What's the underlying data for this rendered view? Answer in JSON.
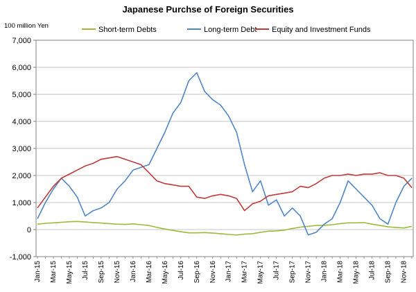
{
  "chart_data": {
    "type": "line",
    "title": "Japanese Purchse of Foreign Securities",
    "ylabel": "100 million Yen",
    "ylim": [
      -1000,
      7000
    ],
    "yticks": [
      "-1,000",
      "0",
      "1,000",
      "2,000",
      "3,000",
      "4,000",
      "5,000",
      "6,000",
      "7,000"
    ],
    "ytick_values": [
      -1000,
      0,
      1000,
      2000,
      3000,
      4000,
      5000,
      6000,
      7000
    ],
    "xlim": [
      "2015-01",
      "2018-12"
    ],
    "x_tick_labels": [
      "Jan-15",
      "Mar-15",
      "May-15",
      "Jul-15",
      "Sep-15",
      "Nov-15",
      "Jan-16",
      "Mar-16",
      "May-16",
      "Jul-16",
      "Sep-16",
      "Nov-16",
      "Jan-17",
      "Mar-17",
      "May-17",
      "Jul-17",
      "Sep-17",
      "Nov-17",
      "Jan-18",
      "Mar-18",
      "May-18",
      "Jul-18",
      "Sep-18",
      "Nov-18"
    ],
    "grid": true,
    "legend_position": "top",
    "series": [
      {
        "name": "Short-term Debts",
        "color": "#9bbb3b",
        "points": [
          [
            "2015-01",
            200
          ],
          [
            "2015-02",
            230
          ],
          [
            "2015-03",
            250
          ],
          [
            "2015-04",
            270
          ],
          [
            "2015-05",
            290
          ],
          [
            "2015-06",
            300
          ],
          [
            "2015-07",
            280
          ],
          [
            "2015-08",
            260
          ],
          [
            "2015-09",
            240
          ],
          [
            "2015-10",
            220
          ],
          [
            "2015-11",
            200
          ],
          [
            "2015-12",
            190
          ],
          [
            "2016-01",
            210
          ],
          [
            "2016-02",
            180
          ],
          [
            "2016-03",
            150
          ],
          [
            "2016-04",
            80
          ],
          [
            "2016-05",
            20
          ],
          [
            "2016-06",
            -30
          ],
          [
            "2016-07",
            -80
          ],
          [
            "2016-08",
            -120
          ],
          [
            "2016-09",
            -120
          ],
          [
            "2016-10",
            -110
          ],
          [
            "2016-11",
            -130
          ],
          [
            "2016-12",
            -150
          ],
          [
            "2017-01",
            -180
          ],
          [
            "2017-02",
            -200
          ],
          [
            "2017-03",
            -170
          ],
          [
            "2017-04",
            -150
          ],
          [
            "2017-05",
            -100
          ],
          [
            "2017-06",
            -60
          ],
          [
            "2017-07",
            -50
          ],
          [
            "2017-08",
            -20
          ],
          [
            "2017-09",
            40
          ],
          [
            "2017-10",
            90
          ],
          [
            "2017-11",
            120
          ],
          [
            "2017-12",
            150
          ],
          [
            "2018-01",
            160
          ],
          [
            "2018-02",
            180
          ],
          [
            "2018-03",
            220
          ],
          [
            "2018-04",
            250
          ],
          [
            "2018-05",
            250
          ],
          [
            "2018-06",
            260
          ],
          [
            "2018-07",
            200
          ],
          [
            "2018-08",
            150
          ],
          [
            "2018-09",
            100
          ],
          [
            "2018-10",
            80
          ],
          [
            "2018-11",
            60
          ],
          [
            "2018-12",
            120
          ]
        ]
      },
      {
        "name": "Long-term Debt",
        "color": "#4f86c6",
        "points": [
          [
            "2015-01",
            400
          ],
          [
            "2015-02",
            1000
          ],
          [
            "2015-03",
            1500
          ],
          [
            "2015-04",
            1900
          ],
          [
            "2015-05",
            1600
          ],
          [
            "2015-06",
            1200
          ],
          [
            "2015-07",
            500
          ],
          [
            "2015-08",
            700
          ],
          [
            "2015-09",
            800
          ],
          [
            "2015-10",
            1000
          ],
          [
            "2015-11",
            1500
          ],
          [
            "2015-12",
            1800
          ],
          [
            "2016-01",
            2200
          ],
          [
            "2016-02",
            2300
          ],
          [
            "2016-03",
            2400
          ],
          [
            "2016-04",
            3000
          ],
          [
            "2016-05",
            3600
          ],
          [
            "2016-06",
            4300
          ],
          [
            "2016-07",
            4700
          ],
          [
            "2016-08",
            5500
          ],
          [
            "2016-09",
            5800
          ],
          [
            "2016-10",
            5100
          ],
          [
            "2016-11",
            4800
          ],
          [
            "2016-12",
            4600
          ],
          [
            "2017-01",
            4200
          ],
          [
            "2017-02",
            3600
          ],
          [
            "2017-03",
            2400
          ],
          [
            "2017-04",
            1400
          ],
          [
            "2017-05",
            1800
          ],
          [
            "2017-06",
            900
          ],
          [
            "2017-07",
            1100
          ],
          [
            "2017-08",
            500
          ],
          [
            "2017-09",
            800
          ],
          [
            "2017-10",
            500
          ],
          [
            "2017-11",
            -200
          ],
          [
            "2017-12",
            -100
          ],
          [
            "2018-01",
            200
          ],
          [
            "2018-02",
            400
          ],
          [
            "2018-03",
            1000
          ],
          [
            "2018-04",
            1800
          ],
          [
            "2018-05",
            1500
          ],
          [
            "2018-06",
            1200
          ],
          [
            "2018-07",
            900
          ],
          [
            "2018-08",
            400
          ],
          [
            "2018-09",
            200
          ],
          [
            "2018-10",
            1000
          ],
          [
            "2018-11",
            1600
          ],
          [
            "2018-12",
            1900
          ]
        ]
      },
      {
        "name": "Equity and Investment Funds",
        "color": "#c0393b",
        "points": [
          [
            "2015-01",
            800
          ],
          [
            "2015-02",
            1200
          ],
          [
            "2015-03",
            1600
          ],
          [
            "2015-04",
            1900
          ],
          [
            "2015-05",
            2050
          ],
          [
            "2015-06",
            2200
          ],
          [
            "2015-07",
            2350
          ],
          [
            "2015-08",
            2450
          ],
          [
            "2015-09",
            2600
          ],
          [
            "2015-10",
            2650
          ],
          [
            "2015-11",
            2700
          ],
          [
            "2015-12",
            2600
          ],
          [
            "2016-01",
            2500
          ],
          [
            "2016-02",
            2400
          ],
          [
            "2016-03",
            2100
          ],
          [
            "2016-04",
            1800
          ],
          [
            "2016-05",
            1700
          ],
          [
            "2016-06",
            1650
          ],
          [
            "2016-07",
            1600
          ],
          [
            "2016-08",
            1600
          ],
          [
            "2016-09",
            1200
          ],
          [
            "2016-10",
            1150
          ],
          [
            "2016-11",
            1250
          ],
          [
            "2016-12",
            1300
          ],
          [
            "2017-01",
            1250
          ],
          [
            "2017-02",
            1150
          ],
          [
            "2017-03",
            700
          ],
          [
            "2017-04",
            950
          ],
          [
            "2017-05",
            1050
          ],
          [
            "2017-06",
            1250
          ],
          [
            "2017-07",
            1300
          ],
          [
            "2017-08",
            1350
          ],
          [
            "2017-09",
            1400
          ],
          [
            "2017-10",
            1600
          ],
          [
            "2017-11",
            1550
          ],
          [
            "2017-12",
            1700
          ],
          [
            "2018-01",
            1900
          ],
          [
            "2018-02",
            2000
          ],
          [
            "2018-03",
            2000
          ],
          [
            "2018-04",
            2050
          ],
          [
            "2018-05",
            2000
          ],
          [
            "2018-06",
            2050
          ],
          [
            "2018-07",
            2050
          ],
          [
            "2018-08",
            2100
          ],
          [
            "2018-09",
            2000
          ],
          [
            "2018-10",
            2000
          ],
          [
            "2018-11",
            1900
          ],
          [
            "2018-12",
            1550
          ]
        ]
      }
    ]
  }
}
